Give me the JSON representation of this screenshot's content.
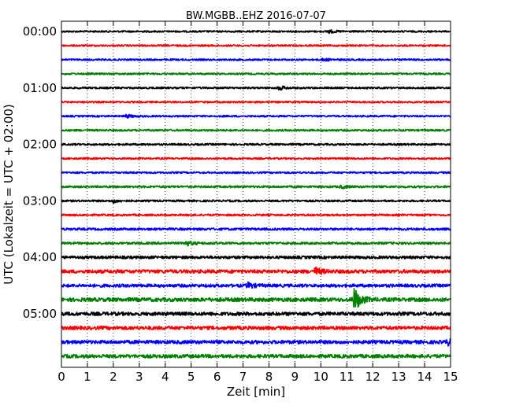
{
  "chart_data": {
    "type": "line",
    "title": "BW.MGBB..EHZ 2016-07-07",
    "xlabel": "Zeit  [min]",
    "ylabel": "UTC (Lokalzeit = UTC + 02:00)",
    "xlim": [
      0,
      15
    ],
    "x_ticks": [
      "0",
      "1",
      "2",
      "3",
      "4",
      "5",
      "6",
      "7",
      "8",
      "9",
      "10",
      "11",
      "12",
      "13",
      "14",
      "15"
    ],
    "y_ticks": [
      "00:00",
      "01:00",
      "02:00",
      "03:00",
      "04:00",
      "05:00"
    ],
    "grid": "vertical-dotted",
    "trace_interval_min": 15,
    "trace_colors": [
      "#000000",
      "#ff0000",
      "#0000ff",
      "#008000"
    ],
    "traces": [
      {
        "start": "00:00",
        "color_index": 0,
        "noise": 1.0,
        "events": [
          {
            "t": 10.3,
            "amp": 2.0
          }
        ]
      },
      {
        "start": "00:15",
        "color_index": 1,
        "noise": 1.0,
        "events": []
      },
      {
        "start": "00:30",
        "color_index": 2,
        "noise": 1.0,
        "events": [
          {
            "t": 10.1,
            "amp": 1.5
          }
        ]
      },
      {
        "start": "00:45",
        "color_index": 3,
        "noise": 1.0,
        "events": []
      },
      {
        "start": "01:00",
        "color_index": 0,
        "noise": 1.0,
        "events": [
          {
            "t": 8.4,
            "amp": 2.5
          }
        ]
      },
      {
        "start": "01:15",
        "color_index": 1,
        "noise": 1.0,
        "events": []
      },
      {
        "start": "01:30",
        "color_index": 2,
        "noise": 1.0,
        "events": [
          {
            "t": 2.5,
            "amp": 2.0
          }
        ]
      },
      {
        "start": "01:45",
        "color_index": 3,
        "noise": 1.1,
        "events": []
      },
      {
        "start": "02:00",
        "color_index": 0,
        "noise": 1.1,
        "events": []
      },
      {
        "start": "02:15",
        "color_index": 1,
        "noise": 1.0,
        "events": []
      },
      {
        "start": "02:30",
        "color_index": 2,
        "noise": 1.0,
        "events": []
      },
      {
        "start": "02:45",
        "color_index": 3,
        "noise": 1.2,
        "events": [
          {
            "t": 10.8,
            "amp": 1.5
          }
        ]
      },
      {
        "start": "03:00",
        "color_index": 0,
        "noise": 1.1,
        "events": [
          {
            "t": 2.0,
            "amp": 2.0
          }
        ]
      },
      {
        "start": "03:15",
        "color_index": 1,
        "noise": 1.1,
        "events": []
      },
      {
        "start": "03:30",
        "color_index": 2,
        "noise": 1.3,
        "events": []
      },
      {
        "start": "03:45",
        "color_index": 3,
        "noise": 1.3,
        "events": [
          {
            "t": 4.8,
            "amp": 3.0
          }
        ]
      },
      {
        "start": "04:00",
        "color_index": 0,
        "noise": 1.6,
        "events": []
      },
      {
        "start": "04:15",
        "color_index": 1,
        "noise": 2.0,
        "events": [
          {
            "t": 9.8,
            "amp": 4.0
          }
        ]
      },
      {
        "start": "04:30",
        "color_index": 2,
        "noise": 1.8,
        "events": [
          {
            "t": 7.2,
            "amp": 3.0
          }
        ]
      },
      {
        "start": "04:45",
        "color_index": 3,
        "noise": 2.2,
        "events": [
          {
            "t": 11.3,
            "amp": 14.0
          }
        ]
      },
      {
        "start": "05:00",
        "color_index": 0,
        "noise": 2.0,
        "events": []
      },
      {
        "start": "05:15",
        "color_index": 1,
        "noise": 2.0,
        "events": []
      },
      {
        "start": "05:30",
        "color_index": 2,
        "noise": 2.0,
        "events": [
          {
            "t": 14.9,
            "amp": 3.0
          }
        ]
      },
      {
        "start": "05:45",
        "color_index": 3,
        "noise": 2.0,
        "events": []
      }
    ]
  }
}
